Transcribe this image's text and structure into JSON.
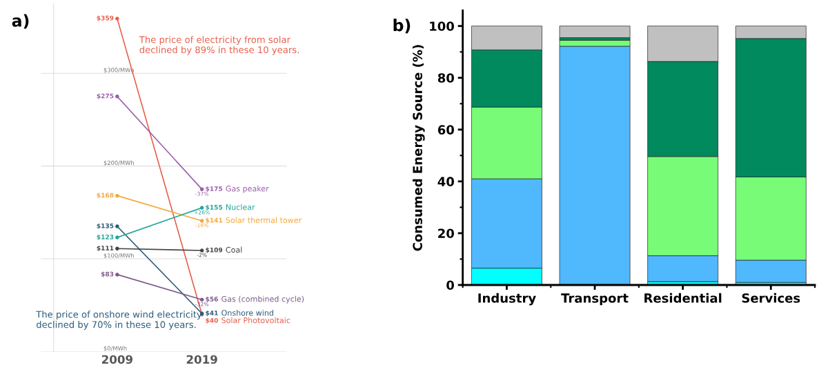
{
  "chart_data": [
    {
      "type": "line",
      "title": "a)",
      "categories": [
        "2009",
        "2019"
      ],
      "ylim": [
        0,
        375
      ],
      "yticks": [
        {
          "value": 0,
          "label": "$0/MWh"
        },
        {
          "value": 100,
          "label": "$100/MWh"
        },
        {
          "value": 200,
          "label": "$200/MWh"
        },
        {
          "value": 300,
          "label": "$300/MWh"
        }
      ],
      "grid": "y",
      "marker": "circle",
      "line_style": "solid",
      "series": [
        {
          "name": "Solar Photovoltaic",
          "color": "#e8604c",
          "values": [
            359,
            40
          ],
          "value_labels": [
            "$359",
            "$40"
          ]
        },
        {
          "name": "Gas peaker",
          "color": "#9a5ea8",
          "values": [
            275,
            175
          ],
          "value_labels": [
            "$275",
            "$175"
          ]
        },
        {
          "name": "Solar thermal tower",
          "color": "#f2a93b",
          "values": [
            168,
            141
          ],
          "value_labels": [
            "$168",
            "$141"
          ]
        },
        {
          "name": "Onshore wind",
          "color": "#2c5b7a",
          "values": [
            135,
            41
          ],
          "value_labels": [
            "$135",
            "$41"
          ]
        },
        {
          "name": "Nuclear",
          "color": "#26a69a",
          "values": [
            123,
            155
          ],
          "value_labels": [
            "$123",
            "$155"
          ]
        },
        {
          "name": "Coal",
          "color": "#444444",
          "values": [
            111,
            109
          ],
          "value_labels": [
            "$111",
            "$109"
          ]
        },
        {
          "name": "Gas (combined cycle)",
          "color": "#7d5a8a",
          "values": [
            83,
            56
          ],
          "value_labels": [
            "$83",
            "$56"
          ]
        }
      ],
      "annotations": [
        "The price of electricity from solar declined by 89% in these 10 years.",
        "The price of onshore wind electricity declined by 70% in these 10 years.",
        {
          "text": "-37%",
          "x": "2019",
          "y": 175
        },
        {
          "text": "+26%",
          "x": "2019",
          "y": 155
        },
        {
          "text": "-16%",
          "x": "2019",
          "y": 141
        },
        {
          "text": "-2%",
          "x": "2019",
          "y": 109
        },
        {
          "text": "-32%",
          "x": "2019",
          "y": 56
        }
      ]
    },
    {
      "type": "bar",
      "stacked": true,
      "title": "b)",
      "ylabel": "Consumed Energy Source (%)",
      "categories": [
        "Industry",
        "Transport",
        "Residential",
        "Services"
      ],
      "ylim": [
        0,
        106
      ],
      "yticks": [
        0,
        20,
        40,
        60,
        80,
        100
      ],
      "grid": false,
      "series": [
        {
          "color": "#00ffff",
          "values": [
            6.5,
            0,
            1.3,
            1
          ]
        },
        {
          "color": "#50b8fc",
          "values": [
            34.5,
            92.2,
            10,
            8.6
          ]
        },
        {
          "color": "#78fc78",
          "values": [
            27.7,
            2.3,
            38.3,
            32.1
          ]
        },
        {
          "color": "#008a5e",
          "values": [
            22.1,
            1,
            36.7,
            53.5
          ]
        },
        {
          "color": "#c0c0c0",
          "values": [
            9.2,
            4.5,
            13.7,
            4.8
          ]
        }
      ]
    }
  ]
}
